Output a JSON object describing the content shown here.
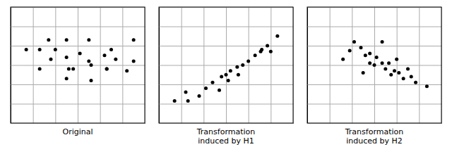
{
  "chart_data": [
    {
      "type": "scatter",
      "title": "Original",
      "color": "black",
      "x": [
        0.7,
        1.3,
        2.0,
        1.7,
        2.5,
        3.5,
        4.5,
        5.5,
        1.8,
        2.5,
        3.1,
        3.5,
        4.2,
        4.7,
        5.5,
        1.3,
        2.6,
        2.8,
        3.6,
        4.3,
        5.2,
        2.5,
        3.6,
        4.3
      ],
      "values": [
        3.8,
        3.8,
        3.8,
        4.3,
        4.3,
        4.3,
        3.8,
        4.3,
        3.3,
        3.4,
        3.6,
        3.2,
        3.5,
        3.3,
        3.2,
        2.8,
        2.8,
        2.8,
        3.0,
        2.8,
        2.7,
        2.3,
        2.2,
        2.8
      ],
      "xlim": [
        0,
        6
      ],
      "ylim": [
        0,
        6
      ],
      "xticks": [
        0,
        1,
        2,
        3,
        4,
        5,
        6
      ],
      "yticks": [
        0,
        1,
        2,
        3,
        4,
        5,
        6
      ],
      "grid": true,
      "tick_labels": false
    },
    {
      "type": "scatter",
      "title": "Transformation\ninduced by H1",
      "color": "black",
      "x": [
        0.7,
        1.3,
        1.2,
        1.8,
        2.1,
        2.4,
        2.8,
        3.1,
        2.7,
        3.0,
        3.2,
        3.55,
        3.5,
        3.75,
        4.0,
        4.3,
        4.6,
        4.85,
        4.55,
        5.0,
        5.3
      ],
      "values": [
        1.15,
        1.15,
        1.6,
        1.4,
        1.8,
        2.1,
        2.4,
        2.2,
        1.7,
        2.5,
        2.7,
        2.5,
        2.9,
        3.0,
        3.2,
        3.5,
        3.8,
        4.0,
        3.7,
        3.7,
        4.5
      ],
      "xlim": [
        0,
        6
      ],
      "ylim": [
        0,
        6
      ],
      "xticks": [
        0,
        1,
        2,
        3,
        4,
        5,
        6
      ],
      "yticks": [
        0,
        1,
        2,
        3,
        4,
        5,
        6
      ],
      "grid": true,
      "tick_labels": false
    },
    {
      "type": "scatter",
      "title": "Transformation\ninduced by H2",
      "color": "black",
      "x": [
        2.1,
        2.4,
        1.6,
        1.9,
        2.6,
        2.8,
        2.8,
        3.0,
        3.1,
        3.35,
        3.5,
        3.65,
        3.75,
        3.9,
        4.0,
        4.1,
        4.3,
        4.5,
        4.65,
        4.85,
        5.35,
        3.35,
        2.5
      ],
      "values": [
        4.2,
        3.9,
        3.3,
        3.75,
        3.5,
        3.1,
        3.6,
        3.0,
        3.4,
        3.1,
        2.8,
        3.1,
        2.5,
        2.7,
        3.3,
        2.6,
        2.3,
        2.8,
        2.4,
        2.1,
        1.9,
        4.2,
        2.6
      ],
      "xlim": [
        0,
        6
      ],
      "ylim": [
        0,
        6
      ],
      "xticks": [
        0,
        1,
        2,
        3,
        4,
        5,
        6
      ],
      "yticks": [
        0,
        1,
        2,
        3,
        4,
        5,
        6
      ],
      "grid": true,
      "tick_labels": false
    }
  ]
}
